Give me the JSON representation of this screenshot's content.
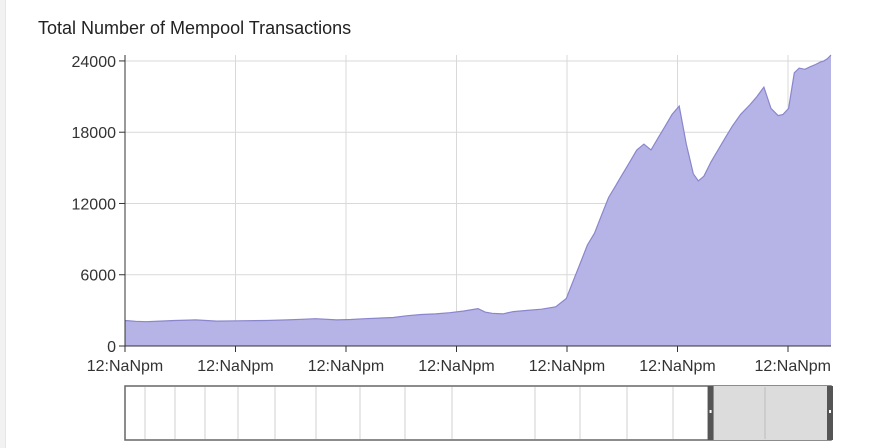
{
  "chart_data": {
    "type": "area",
    "title": "Total Number of Mempool Transactions",
    "xlabel": "",
    "ylabel": "",
    "x_tick_labels": [
      "12:NaNpm",
      "12:NaNpm",
      "12:NaNpm",
      "12:NaNpm",
      "12:NaNpm",
      "12:NaNpm",
      "12:NaNpm"
    ],
    "y_ticks": [
      0,
      6000,
      12000,
      18000,
      24000
    ],
    "y_tick_labels": [
      "0",
      "6000",
      "12000",
      "18000",
      "24000"
    ],
    "ylim": [
      0,
      24500
    ],
    "grid": true,
    "fill_color": "#b6b3e6",
    "line_color": "#8a86cc",
    "series": [
      {
        "x": [
          0,
          0.015,
          0.03,
          0.05,
          0.07,
          0.09,
          0.1,
          0.13,
          0.16,
          0.2,
          0.23,
          0.25,
          0.27,
          0.3,
          0.32,
          0.34,
          0.36,
          0.38,
          0.4,
          0.42,
          0.44,
          0.46,
          0.48,
          0.5,
          0.51,
          0.52,
          0.535,
          0.55,
          0.57,
          0.59,
          0.61,
          0.625,
          0.635,
          0.645,
          0.655,
          0.665,
          0.675,
          0.685,
          0.695,
          0.7,
          0.705,
          0.715,
          0.725,
          0.735,
          0.745,
          0.755,
          0.765,
          0.775,
          0.785,
          0.795,
          0.805,
          0.812,
          0.82,
          0.83,
          0.84,
          0.85,
          0.86,
          0.872,
          0.885,
          0.895,
          0.905,
          0.915,
          0.925,
          0.932,
          0.94,
          0.948,
          0.955,
          0.963,
          0.97,
          0.978,
          0.985,
          0.99,
          0.995,
          1.0
        ],
        "y": [
          2150,
          2080,
          2050,
          2100,
          2150,
          2180,
          2200,
          2100,
          2120,
          2150,
          2200,
          2250,
          2300,
          2200,
          2230,
          2300,
          2350,
          2400,
          2550,
          2650,
          2700,
          2800,
          2950,
          3150,
          2850,
          2750,
          2700,
          2900,
          3000,
          3100,
          3300,
          4000,
          5500,
          7000,
          8500,
          9500,
          11000,
          12500,
          13500,
          14000,
          14500,
          15500,
          16500,
          17000,
          16500,
          17500,
          18500,
          19500,
          20200,
          17000,
          14500,
          13900,
          14300,
          15500,
          16500,
          17500,
          18500,
          19500,
          20300,
          21000,
          21800,
          20000,
          19400,
          19500,
          20000,
          23000,
          23400,
          23300,
          23500,
          23700,
          23900,
          24000,
          24200,
          24500
        ]
      }
    ],
    "navigator": {
      "window_start": 0.828,
      "window_end": 1.0
    }
  }
}
